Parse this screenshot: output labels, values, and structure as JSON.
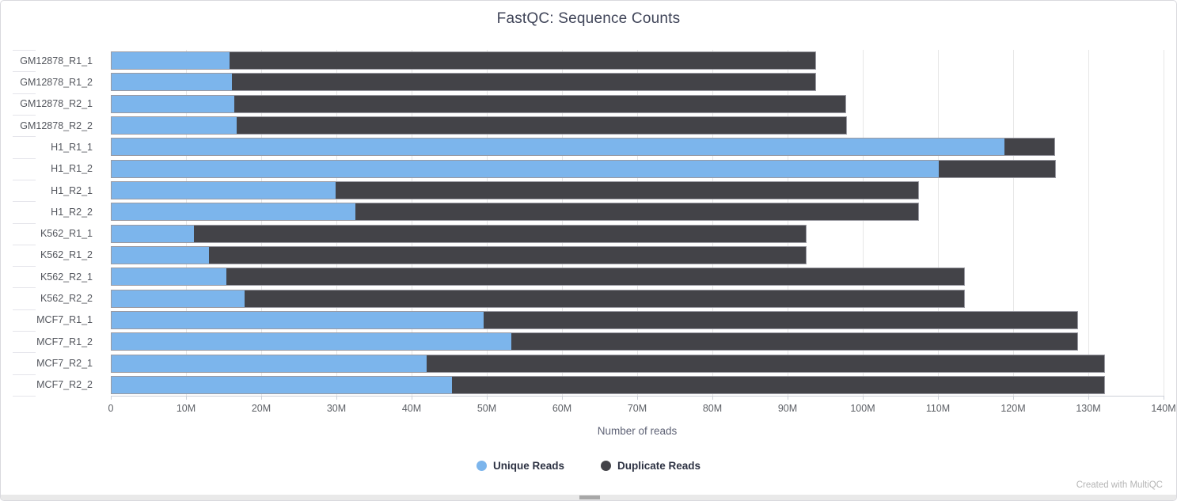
{
  "title": "FastQC: Sequence Counts",
  "watermark": "Created with MultiQC",
  "legend": [
    {
      "label": "Unique Reads",
      "color": "#7cb5ec"
    },
    {
      "label": "Duplicate Reads",
      "color": "#434348"
    }
  ],
  "chart_data": {
    "type": "bar",
    "orientation": "horizontal",
    "stacked": true,
    "title": "FastQC: Sequence Counts",
    "xlabel": "Number of reads",
    "ylabel": "",
    "xlim_millions": [
      0,
      140
    ],
    "x_ticks": [
      "0",
      "10M",
      "20M",
      "30M",
      "40M",
      "50M",
      "60M",
      "70M",
      "80M",
      "90M",
      "100M",
      "110M",
      "120M",
      "130M",
      "140M"
    ],
    "grid": true,
    "legend_position": "bottom",
    "categories": [
      "GM12878_R1_1",
      "GM12878_R1_2",
      "GM12878_R2_1",
      "GM12878_R2_2",
      "H1_R1_1",
      "H1_R1_2",
      "H1_R2_1",
      "H1_R2_2",
      "K562_R1_1",
      "K562_R1_2",
      "K562_R2_1",
      "K562_R2_2",
      "MCF7_R1_1",
      "MCF7_R1_2",
      "MCF7_R2_1",
      "MCF7_R2_2"
    ],
    "series": [
      {
        "name": "Unique Reads",
        "color": "#7cb5ec",
        "values_millions": [
          15.7,
          16.0,
          16.3,
          16.6,
          118.7,
          110.0,
          29.8,
          32.4,
          10.9,
          12.9,
          15.3,
          17.7,
          49.5,
          53.2,
          41.9,
          45.3
        ]
      },
      {
        "name": "Duplicate Reads",
        "color": "#434348",
        "values_millions": [
          77.9,
          77.6,
          81.3,
          81.1,
          6.7,
          15.5,
          77.5,
          74.9,
          81.4,
          79.4,
          98.1,
          95.7,
          78.9,
          75.2,
          90.1,
          86.7
        ]
      }
    ]
  }
}
